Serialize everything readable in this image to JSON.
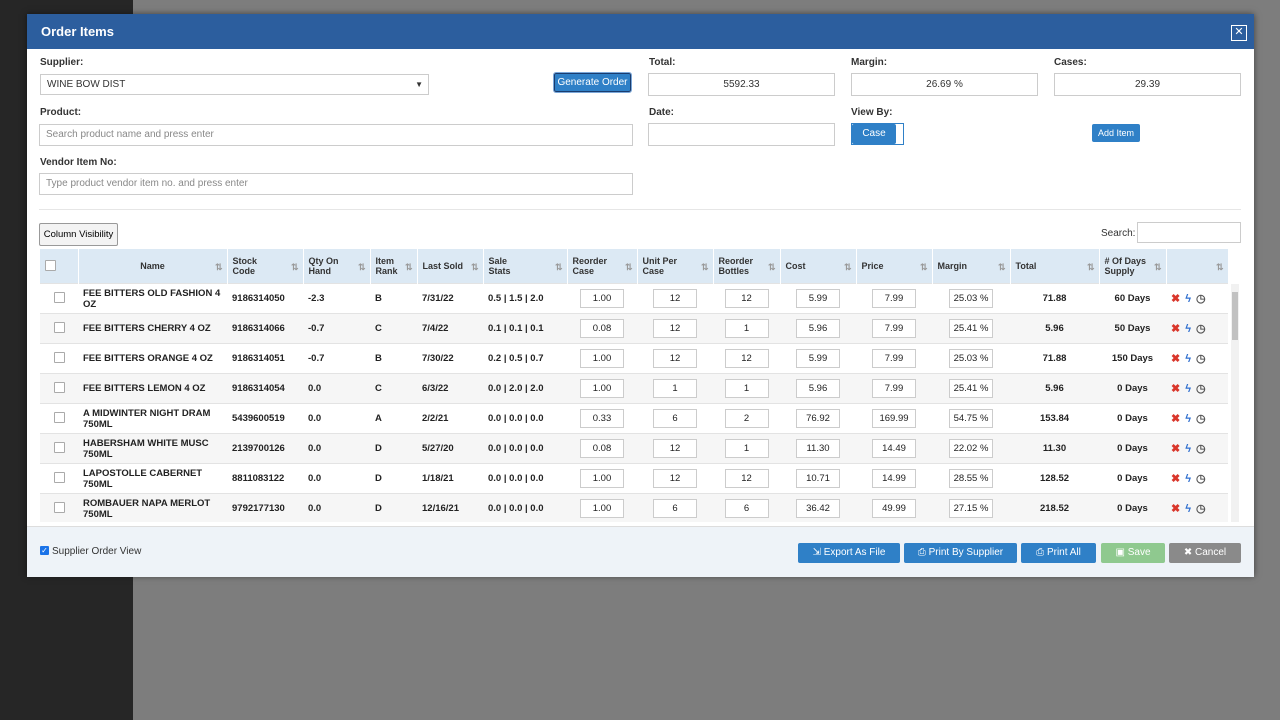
{
  "header": {
    "title": "Order Items"
  },
  "form": {
    "supplier_label": "Supplier:",
    "supplier_value": "WINE BOW DIST",
    "generate_order": "Generate Order",
    "total_label": "Total:",
    "total": "5592.33",
    "margin_label": "Margin:",
    "margin": "26.69 %",
    "cases_label": "Cases:",
    "cases": "29.39",
    "product_label": "Product:",
    "product_placeholder": "Search product name and press enter",
    "date_label": "Date:",
    "view_by_label": "View By:",
    "view_by": "Case",
    "add_item": "Add Item",
    "vendor_label": "Vendor Item No:",
    "vendor_placeholder": "Type product vendor item no. and press enter"
  },
  "toolbar": {
    "column_visibility": "Column Visibility",
    "search_label": "Search:"
  },
  "table": {
    "columns": [
      "Name",
      "Stock Code",
      "Qty On Hand",
      "Item Rank",
      "Last Sold",
      "Sale Stats",
      "Reorder Case",
      "Unit Per Case",
      "Reorder Bottles",
      "Cost",
      "Price",
      "Margin",
      "Total",
      "# Of Days Supply"
    ],
    "rows": [
      [
        "FEE BITTERS OLD FASHION 4 OZ",
        "9186314050",
        "-2.3",
        "B",
        "7/31/22",
        "0.5 | 1.5 | 2.0",
        "1.00",
        "12",
        "12",
        "5.99",
        "7.99",
        "25.03 %",
        "71.88",
        "60 Days"
      ],
      [
        "FEE BITTERS CHERRY 4 OZ",
        "9186314066",
        "-0.7",
        "C",
        "7/4/22",
        "0.1 | 0.1 | 0.1",
        "0.08",
        "12",
        "1",
        "5.96",
        "7.99",
        "25.41 %",
        "5.96",
        "50 Days"
      ],
      [
        "FEE BITTERS ORANGE 4 OZ",
        "9186314051",
        "-0.7",
        "B",
        "7/30/22",
        "0.2 | 0.5 | 0.7",
        "1.00",
        "12",
        "12",
        "5.99",
        "7.99",
        "25.03 %",
        "71.88",
        "150 Days"
      ],
      [
        "FEE BITTERS LEMON 4 OZ",
        "9186314054",
        "0.0",
        "C",
        "6/3/22",
        "0.0 | 2.0 | 2.0",
        "1.00",
        "1",
        "1",
        "5.96",
        "7.99",
        "25.41 %",
        "5.96",
        "0 Days"
      ],
      [
        "A MIDWINTER NIGHT DRAM 750ML",
        "5439600519",
        "0.0",
        "A",
        "2/2/21",
        "0.0 | 0.0 | 0.0",
        "0.33",
        "6",
        "2",
        "76.92",
        "169.99",
        "54.75 %",
        "153.84",
        "0 Days"
      ],
      [
        "HABERSHAM WHITE MUSC 750ML",
        "2139700126",
        "0.0",
        "D",
        "5/27/20",
        "0.0 | 0.0 | 0.0",
        "0.08",
        "12",
        "1",
        "11.30",
        "14.49",
        "22.02 %",
        "11.30",
        "0 Days"
      ],
      [
        "LAPOSTOLLE CABERNET 750ML",
        "8811083122",
        "0.0",
        "D",
        "1/18/21",
        "0.0 | 0.0 | 0.0",
        "1.00",
        "12",
        "12",
        "10.71",
        "14.99",
        "28.55 %",
        "128.52",
        "0 Days"
      ],
      [
        "ROMBAUER NAPA MERLOT 750ML",
        "9792177130",
        "0.0",
        "D",
        "12/16/21",
        "0.0 | 0.0 | 0.0",
        "1.00",
        "6",
        "6",
        "36.42",
        "49.99",
        "27.15 %",
        "218.52",
        "0 Days"
      ]
    ]
  },
  "footer": {
    "supplier_order_view": "Supplier Order View",
    "buttons": [
      "Export As File",
      "Print By Supplier",
      "Print All",
      "Save",
      "Cancel"
    ]
  }
}
